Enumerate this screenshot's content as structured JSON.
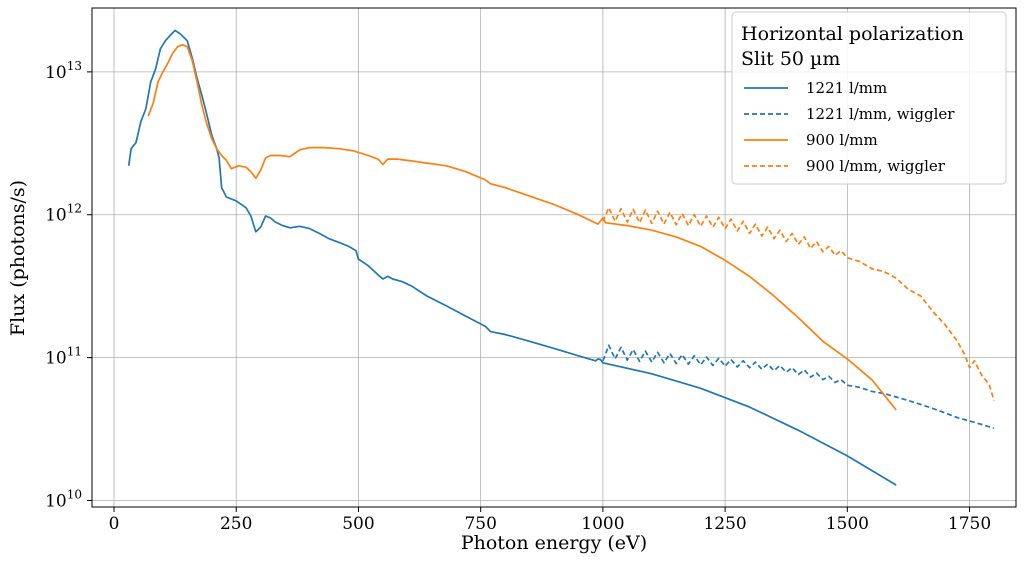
{
  "chart_data": {
    "type": "line",
    "xlabel": "Photon energy (eV)",
    "ylabel": "Flux (photons/s)",
    "xlim": [
      -45,
      1845
    ],
    "ylim": [
      9000000000,
      28000000000000
    ],
    "yscale": "log",
    "grid": true,
    "x_ticks": [
      {
        "value": 0,
        "label": "0"
      },
      {
        "value": 250,
        "label": "250"
      },
      {
        "value": 500,
        "label": "500"
      },
      {
        "value": 750,
        "label": "750"
      },
      {
        "value": 1000,
        "label": "1000"
      },
      {
        "value": 1250,
        "label": "1250"
      },
      {
        "value": 1500,
        "label": "1500"
      },
      {
        "value": 1750,
        "label": "1750"
      }
    ],
    "y_ticks": [
      {
        "value": 10000000000,
        "base": "10",
        "exp": "10"
      },
      {
        "value": 100000000000,
        "base": "10",
        "exp": "11"
      },
      {
        "value": 1000000000000,
        "base": "10",
        "exp": "12"
      },
      {
        "value": 10000000000000,
        "base": "10",
        "exp": "13"
      }
    ],
    "legend": {
      "title_line1": "Horizontal polarization",
      "title_line2": "Slit 50 µm",
      "position": "top-right"
    },
    "series": [
      {
        "name": "1221 l/mm",
        "color": "#1f77b4",
        "dash": "solid",
        "points": [
          [
            30,
            2200000000000.0
          ],
          [
            35,
            2900000000000.0
          ],
          [
            45,
            3200000000000.0
          ],
          [
            55,
            4500000000000.0
          ],
          [
            65,
            5500000000000.0
          ],
          [
            75,
            8500000000000.0
          ],
          [
            85,
            10500000000000.0
          ],
          [
            95,
            14500000000000.0
          ],
          [
            105,
            16500000000000.0
          ],
          [
            115,
            18000000000000.0
          ],
          [
            125,
            19500000000000.0
          ],
          [
            135,
            18500000000000.0
          ],
          [
            150,
            16500000000000.0
          ],
          [
            160,
            12500000000000.0
          ],
          [
            170,
            9000000000000.0
          ],
          [
            180,
            6800000000000.0
          ],
          [
            190,
            5000000000000.0
          ],
          [
            200,
            3600000000000.0
          ],
          [
            210,
            2900000000000.0
          ],
          [
            215,
            2500000000000.0
          ],
          [
            220,
            1550000000000.0
          ],
          [
            230,
            1330000000000.0
          ],
          [
            250,
            1250000000000.0
          ],
          [
            270,
            1120000000000.0
          ],
          [
            280,
            980000000000.0
          ],
          [
            290,
            760000000000.0
          ],
          [
            300,
            820000000000.0
          ],
          [
            310,
            980000000000.0
          ],
          [
            320,
            950000000000.0
          ],
          [
            330,
            890000000000.0
          ],
          [
            345,
            840000000000.0
          ],
          [
            360,
            810000000000.0
          ],
          [
            380,
            830000000000.0
          ],
          [
            400,
            800000000000.0
          ],
          [
            420,
            740000000000.0
          ],
          [
            440,
            680000000000.0
          ],
          [
            460,
            640000000000.0
          ],
          [
            480,
            600000000000.0
          ],
          [
            495,
            560000000000.0
          ],
          [
            500,
            490000000000.0
          ],
          [
            520,
            440000000000.0
          ],
          [
            540,
            380000000000.0
          ],
          [
            550,
            355000000000.0
          ],
          [
            560,
            370000000000.0
          ],
          [
            570,
            355000000000.0
          ],
          [
            590,
            340000000000.0
          ],
          [
            610,
            315000000000.0
          ],
          [
            640,
            270000000000.0
          ],
          [
            680,
            230000000000.0
          ],
          [
            720,
            195000000000.0
          ],
          [
            760,
            165000000000.0
          ],
          [
            770,
            152000000000.0
          ],
          [
            800,
            145000000000.0
          ],
          [
            850,
            130000000000.0
          ],
          [
            900,
            116000000000.0
          ],
          [
            950,
            103000000000.0
          ],
          [
            985,
            95000000000.0
          ],
          [
            990,
            98000000000.0
          ],
          [
            995,
            97000000000.0
          ],
          [
            1000,
            92000000000.0
          ],
          [
            1100,
            77000000000.0
          ],
          [
            1200,
            61000000000.0
          ],
          [
            1300,
            45000000000.0
          ],
          [
            1400,
            31000000000.0
          ],
          [
            1500,
            20500000000.0
          ],
          [
            1600,
            12800000000.0
          ]
        ]
      },
      {
        "name": "1221 l/mm, wiggler",
        "color": "#1f77b4",
        "dash": "dashed",
        "points": [
          [
            1000,
            95000000000.0
          ],
          [
            1012,
            122000000000.0
          ],
          [
            1025,
            98000000000.0
          ],
          [
            1037,
            118000000000.0
          ],
          [
            1050,
            96000000000.0
          ],
          [
            1062,
            114000000000.0
          ],
          [
            1075,
            94000000000.0
          ],
          [
            1087,
            111000000000.0
          ],
          [
            1100,
            93000000000.0
          ],
          [
            1112,
            109000000000.0
          ],
          [
            1125,
            92000000000.0
          ],
          [
            1137,
            107000000000.0
          ],
          [
            1150,
            91000000000.0
          ],
          [
            1162,
            105000000000.0
          ],
          [
            1175,
            90000000000.0
          ],
          [
            1187,
            103000000000.0
          ],
          [
            1200,
            89000000000.0
          ],
          [
            1212,
            101000000000.0
          ],
          [
            1225,
            88000000000.0
          ],
          [
            1237,
            99000000000.0
          ],
          [
            1250,
            87000000000.0
          ],
          [
            1262,
            97000000000.0
          ],
          [
            1275,
            86000000000.0
          ],
          [
            1287,
            95000000000.0
          ],
          [
            1300,
            85000000000.0
          ],
          [
            1312,
            93000000000.0
          ],
          [
            1325,
            83000000000.0
          ],
          [
            1337,
            90000000000.0
          ],
          [
            1350,
            81000000000.0
          ],
          [
            1362,
            88000000000.0
          ],
          [
            1375,
            79000000000.0
          ],
          [
            1387,
            85000000000.0
          ],
          [
            1400,
            76000000000.0
          ],
          [
            1412,
            82000000000.0
          ],
          [
            1425,
            73000000000.0
          ],
          [
            1437,
            78000000000.0
          ],
          [
            1450,
            70000000000.0
          ],
          [
            1462,
            74000000000.0
          ],
          [
            1475,
            67000000000.0
          ],
          [
            1487,
            70000000000.0
          ],
          [
            1500,
            64000000000.0
          ],
          [
            1525,
            62000000000.0
          ],
          [
            1550,
            58000000000.0
          ],
          [
            1575,
            56000000000.0
          ],
          [
            1600,
            53000000000.0
          ],
          [
            1625,
            50000000000.0
          ],
          [
            1650,
            47000000000.0
          ],
          [
            1675,
            44000000000.0
          ],
          [
            1700,
            41000000000.0
          ],
          [
            1725,
            38000000000.0
          ],
          [
            1750,
            36000000000.0
          ],
          [
            1775,
            34000000000.0
          ],
          [
            1800,
            32000000000.0
          ]
        ]
      },
      {
        "name": "900 l/mm",
        "color": "#ff7f0e",
        "dash": "solid",
        "points": [
          [
            70,
            4900000000000.0
          ],
          [
            80,
            6000000000000.0
          ],
          [
            90,
            8500000000000.0
          ],
          [
            100,
            10000000000000.0
          ],
          [
            110,
            11500000000000.0
          ],
          [
            120,
            13500000000000.0
          ],
          [
            130,
            15000000000000.0
          ],
          [
            140,
            15500000000000.0
          ],
          [
            150,
            15000000000000.0
          ],
          [
            160,
            12000000000000.0
          ],
          [
            170,
            8500000000000.0
          ],
          [
            180,
            5800000000000.0
          ],
          [
            190,
            4300000000000.0
          ],
          [
            200,
            3400000000000.0
          ],
          [
            210,
            2900000000000.0
          ],
          [
            220,
            2600000000000.0
          ],
          [
            230,
            2400000000000.0
          ],
          [
            240,
            2100000000000.0
          ],
          [
            255,
            2200000000000.0
          ],
          [
            270,
            2150000000000.0
          ],
          [
            280,
            2000000000000.0
          ],
          [
            290,
            1800000000000.0
          ],
          [
            300,
            2050000000000.0
          ],
          [
            310,
            2500000000000.0
          ],
          [
            320,
            2600000000000.0
          ],
          [
            340,
            2600000000000.0
          ],
          [
            360,
            2550000000000.0
          ],
          [
            380,
            2850000000000.0
          ],
          [
            400,
            2950000000000.0
          ],
          [
            430,
            2950000000000.0
          ],
          [
            460,
            2900000000000.0
          ],
          [
            490,
            2800000000000.0
          ],
          [
            520,
            2600000000000.0
          ],
          [
            540,
            2450000000000.0
          ],
          [
            550,
            2250000000000.0
          ],
          [
            560,
            2450000000000.0
          ],
          [
            580,
            2450000000000.0
          ],
          [
            600,
            2400000000000.0
          ],
          [
            620,
            2350000000000.0
          ],
          [
            640,
            2300000000000.0
          ],
          [
            680,
            2200000000000.0
          ],
          [
            720,
            2000000000000.0
          ],
          [
            760,
            1750000000000.0
          ],
          [
            770,
            1650000000000.0
          ],
          [
            800,
            1550000000000.0
          ],
          [
            850,
            1350000000000.0
          ],
          [
            900,
            1180000000000.0
          ],
          [
            950,
            1000000000000.0
          ],
          [
            990,
            860000000000.0
          ],
          [
            1000,
            950000000000.0
          ],
          [
            1005,
            880000000000.0
          ],
          [
            1050,
            840000000000.0
          ],
          [
            1100,
            780000000000.0
          ],
          [
            1150,
            700000000000.0
          ],
          [
            1200,
            600000000000.0
          ],
          [
            1250,
            480000000000.0
          ],
          [
            1300,
            370000000000.0
          ],
          [
            1350,
            270000000000.0
          ],
          [
            1400,
            190000000000.0
          ],
          [
            1450,
            130000000000.0
          ],
          [
            1500,
            98000000000.0
          ],
          [
            1550,
            70000000000.0
          ],
          [
            1575,
            55000000000.0
          ],
          [
            1600,
            43000000000.0
          ]
        ]
      },
      {
        "name": "900 l/mm, wiggler",
        "color": "#ff7f0e",
        "dash": "dashed",
        "points": [
          [
            1000,
            900000000000.0
          ],
          [
            1012,
            1120000000000.0
          ],
          [
            1025,
            900000000000.0
          ],
          [
            1037,
            1100000000000.0
          ],
          [
            1050,
            890000000000.0
          ],
          [
            1062,
            1090000000000.0
          ],
          [
            1075,
            880000000000.0
          ],
          [
            1087,
            1080000000000.0
          ],
          [
            1100,
            870000000000.0
          ],
          [
            1112,
            1060000000000.0
          ],
          [
            1125,
            860000000000.0
          ],
          [
            1137,
            1040000000000.0
          ],
          [
            1150,
            850000000000.0
          ],
          [
            1162,
            1020000000000.0
          ],
          [
            1175,
            840000000000.0
          ],
          [
            1187,
            1000000000000.0
          ],
          [
            1200,
            830000000000.0
          ],
          [
            1212,
            980000000000.0
          ],
          [
            1225,
            820000000000.0
          ],
          [
            1237,
            960000000000.0
          ],
          [
            1250,
            800000000000.0
          ],
          [
            1262,
            930000000000.0
          ],
          [
            1275,
            770000000000.0
          ],
          [
            1287,
            900000000000.0
          ],
          [
            1300,
            740000000000.0
          ],
          [
            1312,
            860000000000.0
          ],
          [
            1325,
            710000000000.0
          ],
          [
            1337,
            820000000000.0
          ],
          [
            1350,
            680000000000.0
          ],
          [
            1362,
            780000000000.0
          ],
          [
            1375,
            650000000000.0
          ],
          [
            1387,
            740000000000.0
          ],
          [
            1400,
            620000000000.0
          ],
          [
            1412,
            700000000000.0
          ],
          [
            1425,
            580000000000.0
          ],
          [
            1437,
            650000000000.0
          ],
          [
            1450,
            550000000000.0
          ],
          [
            1462,
            600000000000.0
          ],
          [
            1475,
            520000000000.0
          ],
          [
            1487,
            560000000000.0
          ],
          [
            1500,
            500000000000.0
          ],
          [
            1525,
            470000000000.0
          ],
          [
            1550,
            420000000000.0
          ],
          [
            1575,
            400000000000.0
          ],
          [
            1600,
            360000000000.0
          ],
          [
            1625,
            300000000000.0
          ],
          [
            1650,
            270000000000.0
          ],
          [
            1675,
            210000000000.0
          ],
          [
            1700,
            170000000000.0
          ],
          [
            1725,
            130000000000.0
          ],
          [
            1740,
            105000000000.0
          ],
          [
            1750,
            85000000000.0
          ],
          [
            1760,
            95000000000.0
          ],
          [
            1775,
            75000000000.0
          ],
          [
            1790,
            65000000000.0
          ],
          [
            1800,
            50000000000.0
          ]
        ]
      }
    ]
  }
}
